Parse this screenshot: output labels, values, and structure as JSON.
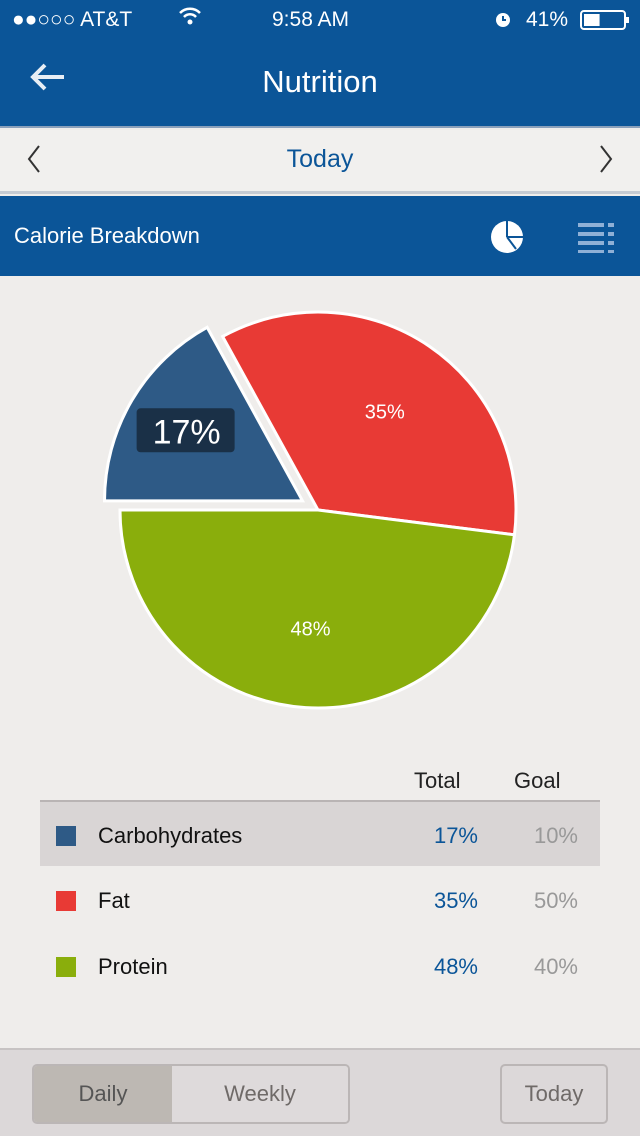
{
  "status": {
    "carrier": "●●○○○ AT&T",
    "time": "9:58 AM",
    "battery": "41%",
    "battery_level": 0.41
  },
  "nav": {
    "title": "Nutrition",
    "back_icon": "arrow-left-icon"
  },
  "datebar": {
    "label": "Today"
  },
  "section": {
    "title": "Calorie Breakdown",
    "icons": [
      "pie-chart-icon",
      "list-icon"
    ]
  },
  "chart_data": {
    "type": "pie",
    "categories": [
      "Carbohydrates",
      "Fat",
      "Protein"
    ],
    "values": [
      17,
      35,
      48
    ],
    "labels": [
      "17%",
      "35%",
      "48%"
    ],
    "colors": [
      "#2e5a86",
      "#e83a35",
      "#8aae0c"
    ],
    "highlighted": "Carbohydrates"
  },
  "table": {
    "headers": {
      "total": "Total",
      "goal": "Goal"
    },
    "rows": [
      {
        "name": "Carbohydrates",
        "total": "17%",
        "goal": "10%",
        "color": "#2e5a86"
      },
      {
        "name": "Fat",
        "total": "35%",
        "goal": "50%",
        "color": "#e83a35"
      },
      {
        "name": "Protein",
        "total": "48%",
        "goal": "40%",
        "color": "#8aae0c"
      }
    ]
  },
  "footer": {
    "daily": "Daily",
    "weekly": "Weekly",
    "today": "Today"
  }
}
